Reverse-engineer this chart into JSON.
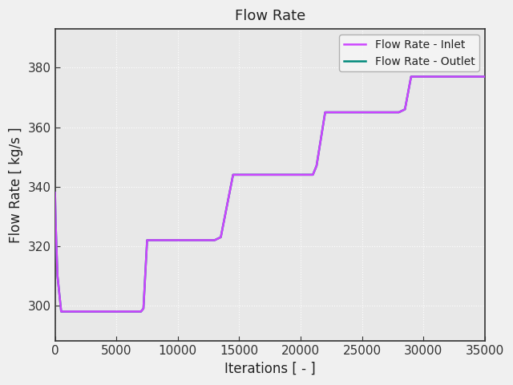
{
  "title": "Flow Rate",
  "xlabel": "Iterations [ - ]",
  "ylabel": "Flow Rate [ kg/s ]",
  "xlim": [
    0,
    35000
  ],
  "ylim": [
    288,
    393
  ],
  "yticks": [
    300,
    320,
    340,
    360,
    380
  ],
  "xticks": [
    0,
    5000,
    10000,
    15000,
    20000,
    25000,
    30000,
    35000
  ],
  "inlet_color": "#cc44ff",
  "outlet_color": "#00897b",
  "legend_labels": [
    "Flow Rate - Inlet",
    "Flow Rate - Outlet"
  ],
  "line_width": 1.8,
  "plot_bg_color": "#e8e8e8",
  "fig_bg_color": "#f0f0f0",
  "grid_color": "#ffffff",
  "spine_color": "#2e8b57",
  "title_fontsize": 13,
  "label_fontsize": 12,
  "tick_fontsize": 11,
  "inlet_x": [
    0,
    50,
    200,
    500,
    7000,
    7200,
    7500,
    13000,
    13500,
    14500,
    21000,
    21300,
    22000,
    28000,
    28500,
    29000,
    35000
  ],
  "inlet_y": [
    338,
    328,
    310,
    298,
    298,
    299,
    322,
    322,
    323,
    344,
    344,
    347,
    365,
    365,
    366,
    377,
    377
  ],
  "outlet_x": [
    0,
    50,
    200,
    500,
    7000,
    7200,
    7500,
    13000,
    13500,
    14500,
    21000,
    21300,
    22000,
    28000,
    28500,
    29000,
    35000
  ],
  "outlet_y": [
    338,
    328,
    310,
    298,
    298,
    299,
    322,
    322,
    323,
    344,
    344,
    347,
    365,
    365,
    366,
    377,
    377
  ]
}
